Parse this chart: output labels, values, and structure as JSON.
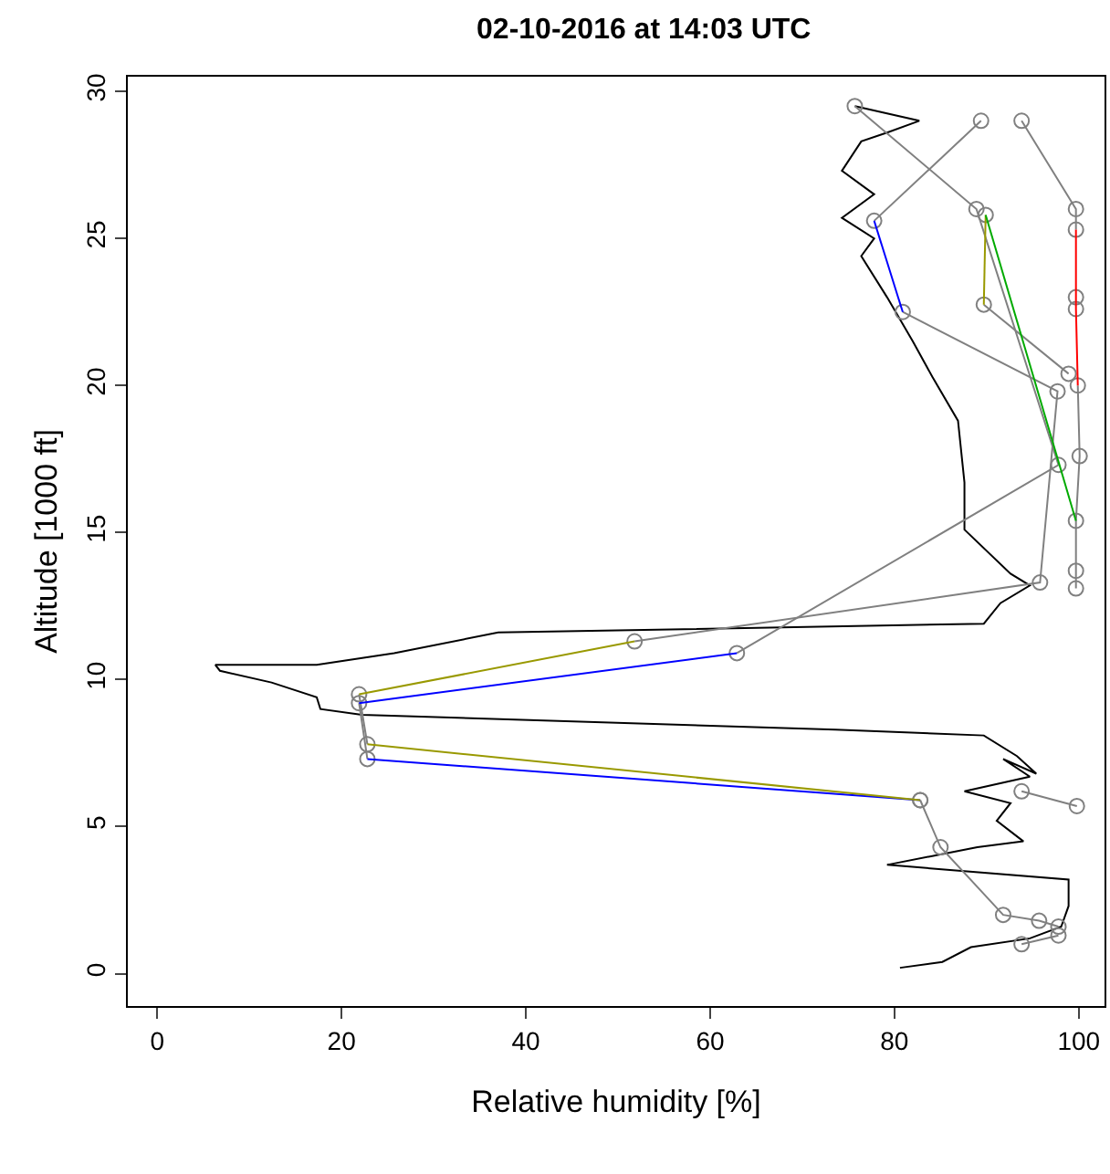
{
  "chart_data": {
    "type": "line",
    "title": "02-10-2016 at 14:03 UTC",
    "xlabel": "Relative humidity [%]",
    "ylabel": "Altitude [1000 ft]",
    "xlim": [
      -3.2,
      102.8
    ],
    "ylim": [
      -1.1,
      30.5
    ],
    "xticks": [
      0,
      20,
      40,
      60,
      80,
      100
    ],
    "yticks": [
      0,
      5,
      10,
      15,
      20,
      25,
      30
    ],
    "grid": false,
    "series": [
      {
        "color": "#000000",
        "marker": "none",
        "x": [
          80.6,
          85.2,
          88.3,
          94.7,
          98.1,
          98.9,
          98.9,
          79.2,
          84.1,
          89.0,
          94.0,
          91.1,
          92.6,
          87.6,
          94.7,
          91.8,
          95.4,
          93.3,
          89.7,
          73.6,
          22.2,
          17.7,
          17.3,
          12.4,
          6.8,
          6.3,
          17.3,
          25.7,
          37.0,
          89.7,
          91.5,
          94.7,
          92.6,
          87.6,
          87.6,
          86.9,
          84.1,
          82.0,
          79.2,
          76.4,
          77.8,
          74.3,
          77.8,
          74.3,
          76.4,
          79.2,
          82.7,
          75.7
        ],
        "values": [
          0.2,
          0.4,
          0.9,
          1.2,
          1.6,
          2.3,
          3.2,
          3.7,
          4.0,
          4.3,
          4.5,
          5.2,
          5.8,
          6.2,
          6.7,
          7.3,
          6.8,
          7.4,
          8.1,
          8.3,
          8.8,
          9.0,
          9.4,
          9.9,
          10.3,
          10.5,
          10.5,
          10.9,
          11.6,
          11.9,
          12.6,
          13.2,
          13.6,
          15.1,
          16.7,
          18.8,
          20.3,
          21.5,
          23.0,
          24.4,
          25.0,
          25.7,
          26.5,
          27.3,
          28.3,
          28.6,
          29.0,
          29.5
        ]
      },
      {
        "color": "#808080",
        "marker": "circle",
        "x": [
          93.8,
          99.7,
          99.7,
          null,
          99.7,
          null,
          99.7,
          null,
          99.9,
          100.1,
          99.7,
          99.7,
          99.7
        ],
        "values": [
          29.0,
          26.0,
          25.3,
          null,
          23.0,
          null,
          22.6,
          null,
          20.0,
          17.6,
          15.4,
          13.7,
          13.1
        ]
      },
      {
        "color": "#808080",
        "marker": "circle",
        "x": [
          75.7,
          88.9,
          97.8,
          62.9,
          null,
          21.9,
          22.8,
          null,
          82.8
        ],
        "values": [
          29.5,
          26.0,
          17.3,
          10.9,
          null,
          9.2,
          7.3,
          null,
          5.9
        ]
      },
      {
        "color": "#808080",
        "marker": "circle",
        "x": [
          89.4,
          77.8,
          null,
          80.9,
          97.7,
          95.8,
          51.8,
          null,
          21.9,
          22.8,
          null,
          82.8,
          85.0,
          91.8,
          95.7,
          97.8
        ],
        "values": [
          29.0,
          25.6,
          null,
          22.5,
          19.8,
          13.3,
          11.3,
          null,
          9.5,
          7.8,
          null,
          5.9,
          4.3,
          2.0,
          1.8,
          1.6
        ]
      },
      {
        "color": "#808080",
        "marker": "circle",
        "x": [
          89.9,
          null,
          89.7,
          98.9,
          null,
          99.8,
          93.8,
          null,
          97.8,
          93.8
        ],
        "values": [
          25.8,
          null,
          22.75,
          20.4,
          null,
          5.7,
          6.2,
          null,
          1.3,
          1.0
        ]
      },
      {
        "color": "#0000ff",
        "marker": "none",
        "x": [
          77.8,
          80.9,
          null,
          62.9,
          21.9,
          null,
          22.8,
          82.8
        ],
        "values": [
          25.6,
          22.5,
          null,
          10.9,
          9.2,
          null,
          7.3,
          5.9
        ]
      },
      {
        "color": "#999900",
        "marker": "none",
        "x": [
          89.9,
          89.7,
          null,
          51.8,
          21.9,
          null,
          22.8,
          82.8
        ],
        "values": [
          25.8,
          22.75,
          null,
          11.3,
          9.5,
          null,
          7.8,
          5.9
        ]
      },
      {
        "color": "#ff0000",
        "marker": "none",
        "x": [
          99.7,
          99.7,
          99.7,
          99.9
        ],
        "values": [
          25.3,
          23.0,
          22.6,
          20.0
        ]
      },
      {
        "color": "#00aa00",
        "marker": "none",
        "x": [
          89.9,
          99.7
        ],
        "values": [
          25.8,
          15.4
        ]
      }
    ]
  }
}
